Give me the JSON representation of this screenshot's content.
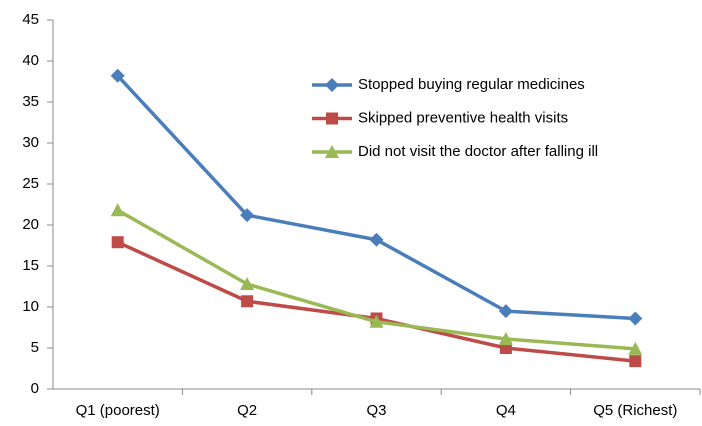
{
  "chart_data": {
    "type": "line",
    "categories": [
      "Q1 (poorest)",
      "Q2",
      "Q3",
      "Q4",
      "Q5 (Richest)"
    ],
    "series": [
      {
        "name": "Stopped buying regular medicines",
        "color": "#4a7ebb",
        "marker": "diamond",
        "values": [
          38.2,
          21.2,
          18.2,
          9.5,
          8.6
        ]
      },
      {
        "name": "Skipped preventive health visits",
        "color": "#be4b48",
        "marker": "square",
        "values": [
          17.9,
          10.7,
          8.6,
          5.0,
          3.4
        ]
      },
      {
        "name": "Did not visit the doctor after falling ill",
        "color": "#98b954",
        "marker": "triangle",
        "values": [
          21.8,
          12.8,
          8.2,
          6.1,
          4.9
        ]
      }
    ],
    "ylim": [
      0,
      45
    ],
    "yticks": [
      0,
      5,
      10,
      15,
      20,
      25,
      30,
      35,
      40,
      45
    ],
    "grid": false,
    "legend": "upper right"
  }
}
